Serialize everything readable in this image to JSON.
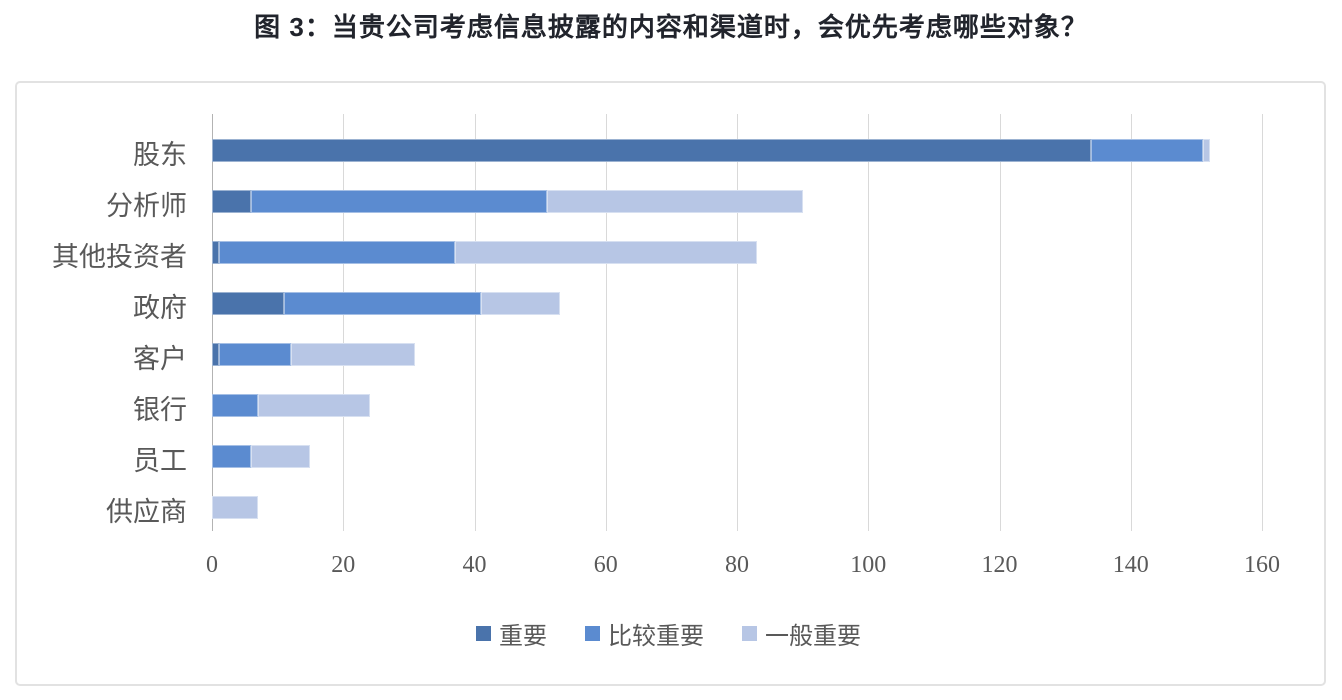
{
  "title": "图 3：当贵公司考虑信息披露的内容和渠道时，会优先考虑哪些对象？",
  "chart_data": {
    "type": "bar",
    "orientation": "horizontal",
    "stacked": true,
    "title": "图 3：当贵公司考虑信息披露的内容和渠道时，会优先考虑哪些对象？",
    "categories": [
      "股东",
      "分析师",
      "其他投资者",
      "政府",
      "客户",
      "银行",
      "员工",
      "供应商"
    ],
    "series": [
      {
        "name": "重要",
        "color": "#4a73ab",
        "values": [
          134,
          6,
          1,
          11,
          1,
          0,
          0,
          0
        ]
      },
      {
        "name": "比较重要",
        "color": "#5b8bd0",
        "values": [
          17,
          45,
          36,
          30,
          11,
          7,
          6,
          0
        ]
      },
      {
        "name": "一般重要",
        "color": "#b7c6e5",
        "values": [
          1,
          39,
          46,
          12,
          19,
          17,
          9,
          7
        ]
      }
    ],
    "totals": [
      152,
      90,
      83,
      53,
      31,
      24,
      15,
      7
    ],
    "x_axis": {
      "min": 0,
      "max": 160,
      "step": 20,
      "ticks": [
        "0",
        "20",
        "40",
        "60",
        "80",
        "100",
        "120",
        "140",
        "160"
      ]
    },
    "ylabel": "",
    "xlabel": "",
    "grid": true,
    "legend_position": "bottom",
    "gridline_color": "#d9d9d9",
    "axis_line_color": "#b3b3b3",
    "text_color": "#595959",
    "title_color": "#21242c"
  }
}
